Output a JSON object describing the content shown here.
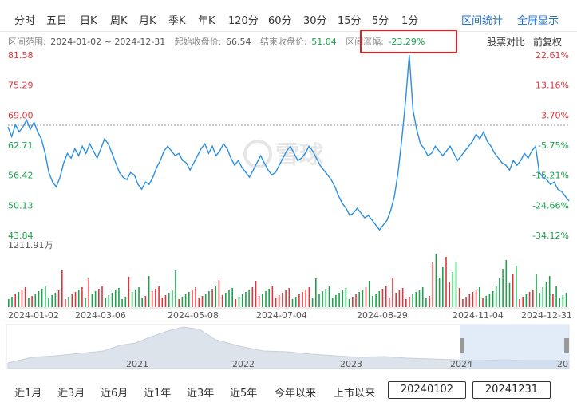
{
  "tabs": [
    "分时",
    "五日",
    "日K",
    "周K",
    "月K",
    "季K",
    "年K",
    "120分",
    "60分",
    "30分",
    "15分",
    "5分",
    "1分"
  ],
  "tab_actions": {
    "range_stats": "区间统计",
    "fullscreen": "全屏显示"
  },
  "info": {
    "range_label": "区间范围:",
    "range_value": "2024-01-02 ~ 2024-12-31",
    "start_label": "起始收盘价:",
    "start_value": "66.54",
    "end_label": "结束收盘价:",
    "end_value": "51.04",
    "change_label": "区间涨幅:",
    "change_value": "-23.29%"
  },
  "links": {
    "compare": "股票对比",
    "adjust": "前复权"
  },
  "left_axis": [
    "81.58",
    "75.29",
    "69.00",
    "62.71",
    "56.42",
    "50.13",
    "43.84"
  ],
  "right_axis": [
    "22.61%",
    "13.16%",
    "3.70%",
    "-5.75%",
    "-15.21%",
    "-24.66%",
    "-34.12%"
  ],
  "volume_max": "1211.91万",
  "date_labels": [
    "2024-01-02",
    "2024-03-06",
    "2024-05-08",
    "2024-07-04",
    "2024-08-29",
    "2024-11-04",
    "2024-12-31"
  ],
  "overview_years": [
    "2021",
    "2022",
    "2023",
    "2024",
    "20"
  ],
  "watermark": "雪球",
  "range_buttons": [
    "近1月",
    "近3月",
    "近6月",
    "近1年",
    "近3年",
    "近5年",
    "今年以来",
    "上市以来"
  ],
  "date_from": "20240102",
  "date_to": "20241231",
  "colors": {
    "line": "#2a8fe0",
    "up": "#e0343a",
    "down": "#1aa34a",
    "accent": "#1f6fd1",
    "highlight": "#e02020"
  },
  "chart_data": {
    "type": "line",
    "x_range": [
      "2024-01-02",
      "2024-12-31"
    ],
    "ylim": [
      43.84,
      81.58
    ],
    "start_close": 66.54,
    "end_close": 51.04,
    "series": [
      {
        "values": [
          66.5,
          64.5,
          67.0,
          65.5,
          66.5,
          68.0,
          66.0,
          67.5,
          65.5,
          64.0,
          61.0,
          57.0,
          55.0,
          54.0,
          56.0,
          59.0,
          61.0,
          60.0,
          62.0,
          60.5,
          62.5,
          61.0,
          63.0,
          61.5,
          60.0,
          62.0,
          64.0,
          63.0,
          61.0,
          59.0,
          57.0,
          56.0,
          55.5,
          57.0,
          56.5,
          54.5,
          53.5,
          55.0,
          54.5,
          56.0,
          58.0,
          59.5,
          61.5,
          62.5,
          61.5,
          60.5,
          61.0,
          59.5,
          59.0,
          57.5,
          59.0,
          60.5,
          62.0,
          63.0,
          61.0,
          62.5,
          60.5,
          61.5,
          63.0,
          62.0,
          60.0,
          58.5,
          59.5,
          58.0,
          57.0,
          56.0,
          57.5,
          59.0,
          60.5,
          59.0,
          57.5,
          56.5,
          57.0,
          58.5,
          60.0,
          61.5,
          62.5,
          61.0,
          59.5,
          60.0,
          61.0,
          62.5,
          61.5,
          60.0,
          58.5,
          57.5,
          56.5,
          55.5,
          54.0,
          52.0,
          50.5,
          49.5,
          48.0,
          48.5,
          49.5,
          48.5,
          47.5,
          48.0,
          47.0,
          46.0,
          45.0,
          46.0,
          47.0,
          49.0,
          52.0,
          57.0,
          64.0,
          72.0,
          81.58,
          70.0,
          66.0,
          63.0,
          62.0,
          60.5,
          61.0,
          62.5,
          61.5,
          60.5,
          61.5,
          62.5,
          61.0,
          59.5,
          60.5,
          61.5,
          62.5,
          63.5,
          65.0,
          64.0,
          65.5,
          63.5,
          62.5,
          61.0,
          60.0,
          59.0,
          58.5,
          57.5,
          59.5,
          58.5,
          59.5,
          61.0,
          60.0,
          61.5,
          62.5,
          57.0,
          56.0,
          55.5,
          54.5,
          55.0,
          53.5,
          53.0,
          52.0,
          51.04
        ]
      }
    ]
  }
}
